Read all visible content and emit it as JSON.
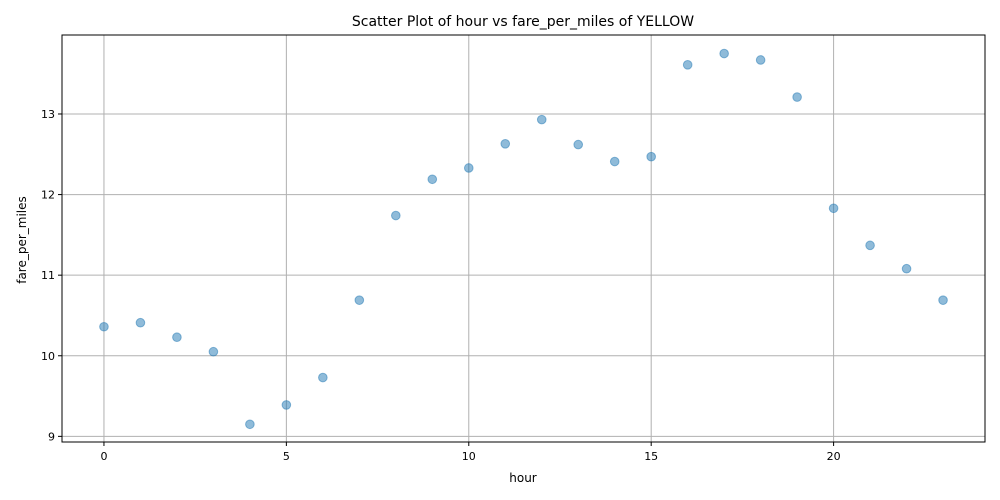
{
  "chart_data": {
    "type": "scatter",
    "title": "Scatter Plot of hour vs fare_per_miles of YELLOW",
    "xlabel": "hour",
    "ylabel": "fare_per_miles",
    "xlim": [
      -1.15,
      24.15
    ],
    "ylim": [
      8.93,
      13.98
    ],
    "xticks": [
      0,
      5,
      10,
      15,
      20
    ],
    "yticks": [
      9,
      10,
      11,
      12,
      13
    ],
    "grid": true,
    "marker_color": "#1f77b4",
    "marker_alpha": 0.5,
    "points": [
      {
        "x": 0,
        "y": 10.36
      },
      {
        "x": 1,
        "y": 10.41
      },
      {
        "x": 2,
        "y": 10.23
      },
      {
        "x": 3,
        "y": 10.05
      },
      {
        "x": 4,
        "y": 9.15
      },
      {
        "x": 5,
        "y": 9.39
      },
      {
        "x": 6,
        "y": 9.73
      },
      {
        "x": 7,
        "y": 10.69
      },
      {
        "x": 8,
        "y": 11.74
      },
      {
        "x": 9,
        "y": 12.19
      },
      {
        "x": 10,
        "y": 12.33
      },
      {
        "x": 11,
        "y": 12.63
      },
      {
        "x": 12,
        "y": 12.93
      },
      {
        "x": 13,
        "y": 12.62
      },
      {
        "x": 14,
        "y": 12.41
      },
      {
        "x": 15,
        "y": 12.47
      },
      {
        "x": 16,
        "y": 13.61
      },
      {
        "x": 17,
        "y": 13.75
      },
      {
        "x": 18,
        "y": 13.67
      },
      {
        "x": 19,
        "y": 13.21
      },
      {
        "x": 20,
        "y": 11.83
      },
      {
        "x": 21,
        "y": 11.37
      },
      {
        "x": 22,
        "y": 11.08
      },
      {
        "x": 23,
        "y": 10.69
      }
    ]
  }
}
